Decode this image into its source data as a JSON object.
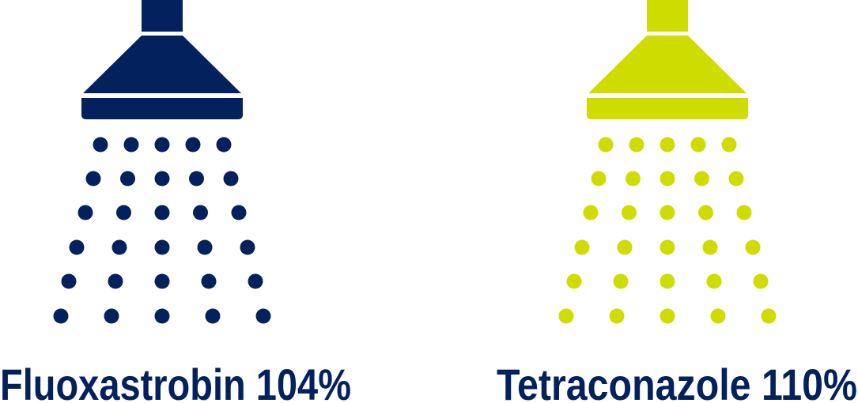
{
  "items": [
    {
      "label": "Fluoxastrobin 104%",
      "color": "#03215d"
    },
    {
      "label": "Tetraconazole 110%",
      "color": "#cfdc00"
    }
  ]
}
